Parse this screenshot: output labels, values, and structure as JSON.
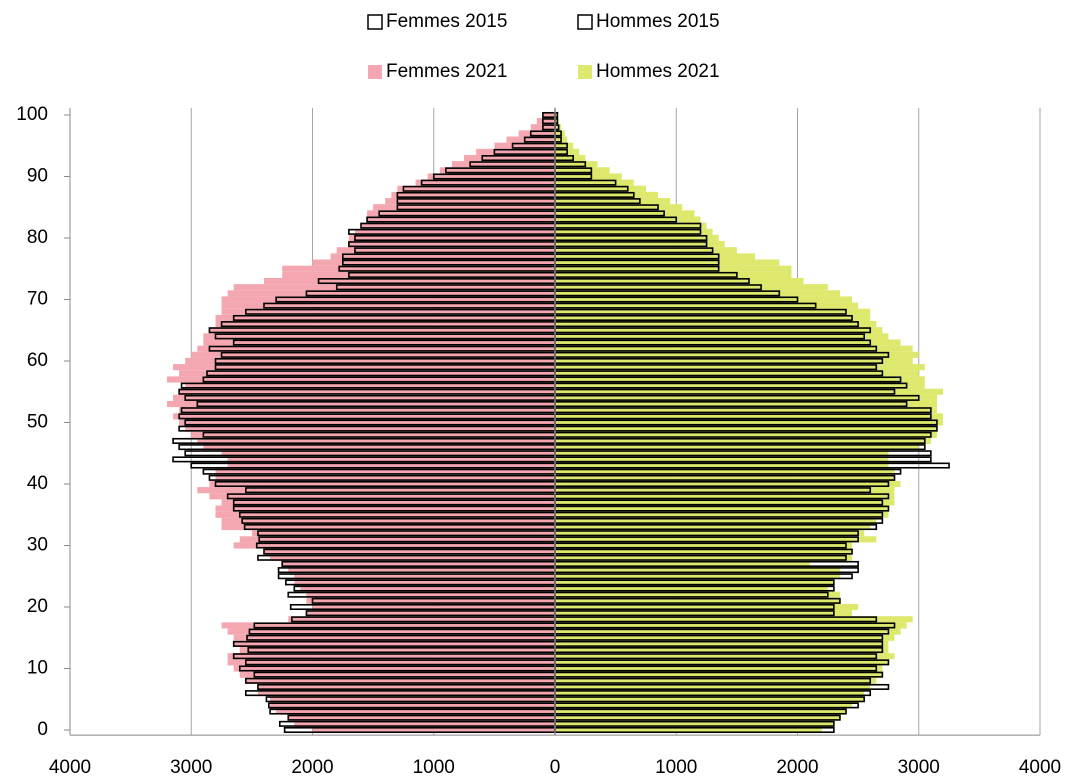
{
  "chart_data": {
    "type": "pyramid",
    "y": [
      0,
      1,
      2,
      3,
      4,
      5,
      6,
      7,
      8,
      9,
      10,
      11,
      12,
      13,
      14,
      15,
      16,
      17,
      18,
      19,
      20,
      21,
      22,
      23,
      24,
      25,
      26,
      27,
      28,
      29,
      30,
      31,
      32,
      33,
      34,
      35,
      36,
      37,
      38,
      39,
      40,
      41,
      42,
      43,
      44,
      45,
      46,
      47,
      48,
      49,
      50,
      51,
      52,
      53,
      54,
      55,
      56,
      57,
      58,
      59,
      60,
      61,
      62,
      63,
      64,
      65,
      66,
      67,
      68,
      69,
      70,
      71,
      72,
      73,
      74,
      75,
      76,
      77,
      78,
      79,
      80,
      81,
      82,
      83,
      84,
      85,
      86,
      87,
      88,
      89,
      90,
      91,
      92,
      93,
      94,
      95,
      96,
      97,
      98,
      99,
      100
    ],
    "series": [
      {
        "name": "Femmes 2015",
        "side": "left",
        "outline": true,
        "color": "#000000",
        "values": [
          2230,
          2270,
          2200,
          2350,
          2360,
          2380,
          2550,
          2450,
          2550,
          2480,
          2600,
          2550,
          2650,
          2530,
          2650,
          2540,
          2520,
          2480,
          2170,
          2050,
          2180,
          2000,
          2200,
          2150,
          2220,
          2280,
          2280,
          2250,
          2450,
          2400,
          2460,
          2440,
          2450,
          2560,
          2580,
          2600,
          2650,
          2650,
          2700,
          2550,
          2800,
          2850,
          2900,
          3000,
          3150,
          3050,
          3100,
          3150,
          2900,
          3100,
          3050,
          3100,
          3080,
          2950,
          3050,
          3100,
          3080,
          2900,
          2870,
          2800,
          2800,
          2750,
          2850,
          2650,
          2800,
          2850,
          2750,
          2650,
          2550,
          2400,
          2300,
          2050,
          1800,
          1950,
          1700,
          1780,
          1750,
          1750,
          1650,
          1700,
          1650,
          1700,
          1600,
          1550,
          1450,
          1300,
          1300,
          1300,
          1250,
          1100,
          1000,
          900,
          700,
          600,
          500,
          350,
          250,
          200,
          100,
          100,
          100
        ]
      },
      {
        "name": "Hommes 2015",
        "side": "right",
        "outline": true,
        "color": "#000000",
        "values": [
          2300,
          2300,
          2350,
          2400,
          2500,
          2550,
          2600,
          2750,
          2600,
          2700,
          2650,
          2750,
          2650,
          2700,
          2700,
          2700,
          2750,
          2800,
          2650,
          2300,
          2300,
          2350,
          2250,
          2300,
          2300,
          2450,
          2500,
          2500,
          2400,
          2450,
          2400,
          2500,
          2500,
          2650,
          2700,
          2700,
          2750,
          2700,
          2750,
          2600,
          2750,
          2800,
          2850,
          3250,
          3100,
          3100,
          3050,
          3050,
          3100,
          3150,
          3150,
          3100,
          3100,
          2900,
          3000,
          2800,
          2900,
          2850,
          2700,
          2650,
          2700,
          2750,
          2650,
          2600,
          2550,
          2600,
          2500,
          2450,
          2400,
          2150,
          2000,
          1850,
          1700,
          1600,
          1500,
          1350,
          1350,
          1350,
          1300,
          1250,
          1250,
          1200,
          1200,
          1000,
          900,
          850,
          700,
          650,
          600,
          500,
          300,
          300,
          250,
          150,
          100,
          100,
          50,
          50,
          30,
          20,
          20
        ]
      },
      {
        "name": "Femmes 2021",
        "side": "left",
        "outline": false,
        "color": "#f4a7b0",
        "values": [
          2000,
          2150,
          2200,
          2300,
          2350,
          2350,
          2450,
          2450,
          2550,
          2600,
          2650,
          2700,
          2700,
          2600,
          2650,
          2650,
          2700,
          2750,
          2200,
          2050,
          2000,
          2050,
          2050,
          2100,
          2150,
          2150,
          2200,
          2250,
          2350,
          2400,
          2650,
          2600,
          2500,
          2750,
          2750,
          2800,
          2800,
          2750,
          2850,
          2950,
          2850,
          2800,
          2800,
          2700,
          2700,
          2750,
          2900,
          2950,
          3000,
          3050,
          3100,
          3150,
          3100,
          3200,
          3150,
          3100,
          3050,
          3200,
          3100,
          3150,
          3050,
          3000,
          2950,
          2900,
          2900,
          2850,
          2800,
          2800,
          2750,
          2750,
          2750,
          2700,
          2650,
          2400,
          2250,
          2250,
          2000,
          1850,
          1800,
          1700,
          1700,
          1650,
          1600,
          1550,
          1550,
          1500,
          1400,
          1350,
          1300,
          1150,
          1050,
          950,
          850,
          750,
          650,
          500,
          400,
          300,
          200,
          150,
          100
        ]
      },
      {
        "name": "Hommes 2021",
        "side": "right",
        "outline": false,
        "color": "#dde86c",
        "values": [
          2200,
          2300,
          2350,
          2400,
          2450,
          2550,
          2550,
          2600,
          2650,
          2700,
          2700,
          2750,
          2800,
          2750,
          2750,
          2800,
          2850,
          2900,
          2950,
          2450,
          2500,
          2350,
          2350,
          2250,
          2300,
          2350,
          2350,
          2100,
          2450,
          2450,
          2450,
          2650,
          2550,
          2600,
          2650,
          2750,
          2750,
          2800,
          2800,
          2800,
          2850,
          2800,
          2800,
          2750,
          2750,
          2750,
          3000,
          3100,
          3150,
          3150,
          3200,
          3200,
          3150,
          3150,
          3150,
          3200,
          3050,
          3050,
          3000,
          3050,
          2950,
          3000,
          2950,
          2850,
          2750,
          2700,
          2650,
          2600,
          2600,
          2500,
          2450,
          2350,
          2250,
          2050,
          1950,
          1950,
          1850,
          1650,
          1500,
          1400,
          1350,
          1300,
          1250,
          1200,
          1150,
          1050,
          950,
          850,
          750,
          650,
          550,
          450,
          350,
          250,
          200,
          150,
          100,
          80,
          50,
          30,
          20
        ]
      }
    ],
    "xlim": [
      -4000,
      4000
    ],
    "xticks": [
      {
        "value": -4000,
        "label": "4000"
      },
      {
        "value": -3000,
        "label": "3000"
      },
      {
        "value": -2000,
        "label": "2000"
      },
      {
        "value": -1000,
        "label": "1000"
      },
      0,
      1000,
      2000,
      3000,
      4000
    ],
    "ylim": [
      0,
      100
    ],
    "yticks": [
      0,
      10,
      20,
      30,
      40,
      50,
      60,
      70,
      80,
      90,
      100
    ],
    "grid": true
  }
}
